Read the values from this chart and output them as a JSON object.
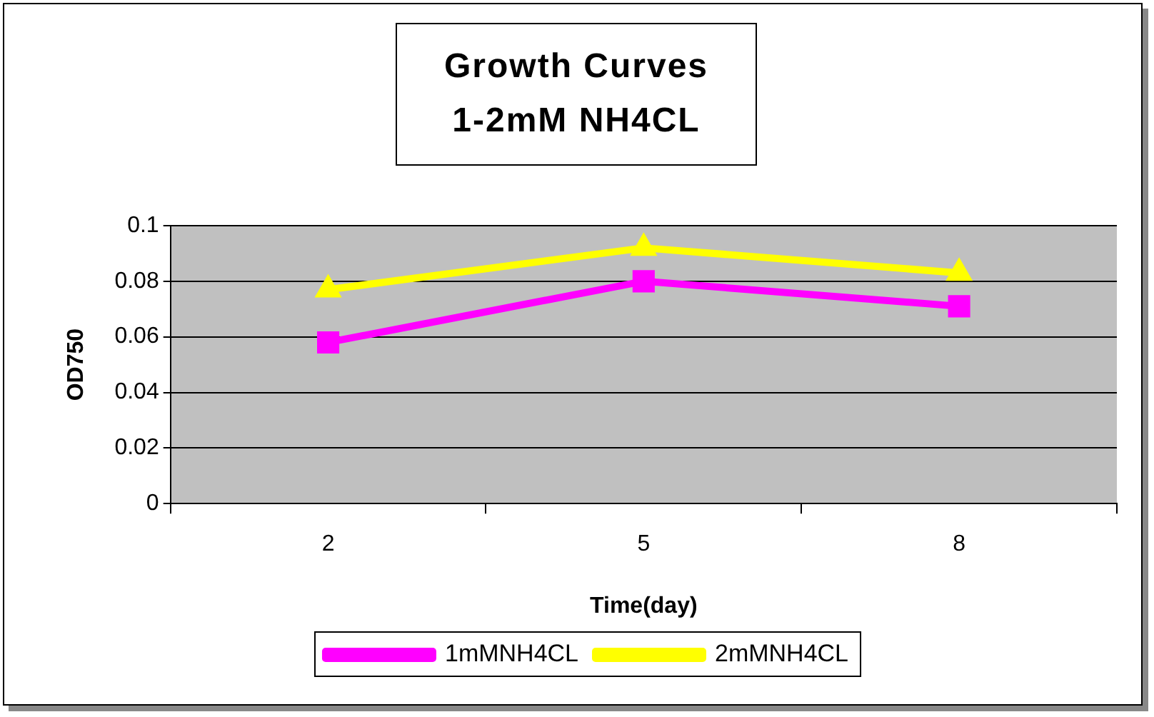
{
  "chart_data": {
    "type": "line",
    "title": "Growth Curves 1-2mM NH4CL",
    "xlabel": "Time(day)",
    "ylabel": "OD750",
    "categories": [
      "2",
      "5",
      "8"
    ],
    "series": [
      {
        "name": "1mMNH4CL",
        "color": "#ff00ff",
        "marker": "square",
        "values": [
          0.058,
          0.08,
          0.071
        ]
      },
      {
        "name": "2mMNH4CL",
        "color": "#ffff00",
        "marker": "triangle",
        "values": [
          0.077,
          0.092,
          0.083
        ]
      }
    ],
    "ylim": [
      0,
      0.1
    ],
    "yticks": [
      0,
      0.02,
      0.04,
      0.06,
      0.08,
      0.1
    ],
    "grid": "y",
    "legend": "bottom"
  }
}
